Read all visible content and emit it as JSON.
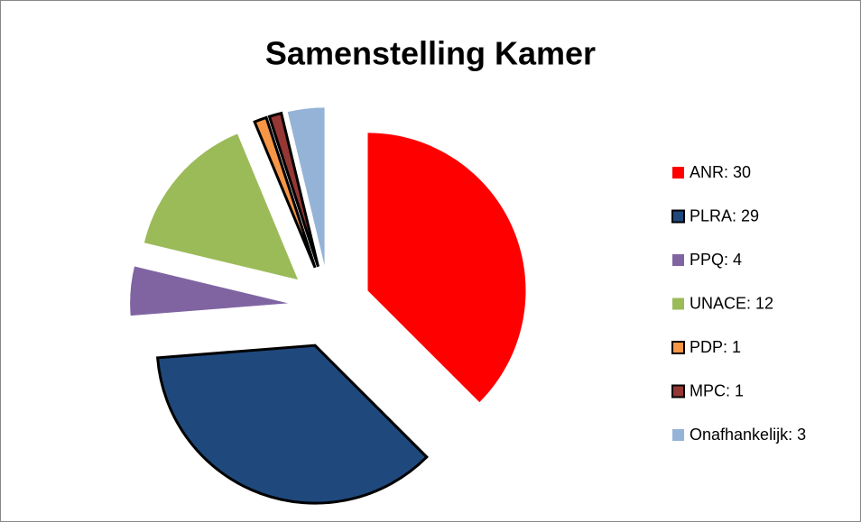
{
  "chart_data": {
    "type": "pie",
    "title": "Samenstelling Kamer",
    "categories": [
      "ANR: 30",
      "PLRA: 29",
      "PPQ: 4",
      "UNACE: 12",
      "PDP: 1",
      "MPC: 1",
      "Onafhankelijk: 3"
    ],
    "values": [
      30,
      29,
      4,
      12,
      1,
      1,
      3
    ],
    "colors": [
      "#ff0000",
      "#1f497d",
      "#8064a2",
      "#9bbb59",
      "#f79646",
      "#953735",
      "#95b3d7"
    ],
    "outlined": [
      false,
      true,
      false,
      false,
      true,
      true,
      false
    ],
    "exploded": true,
    "legend": "right"
  }
}
